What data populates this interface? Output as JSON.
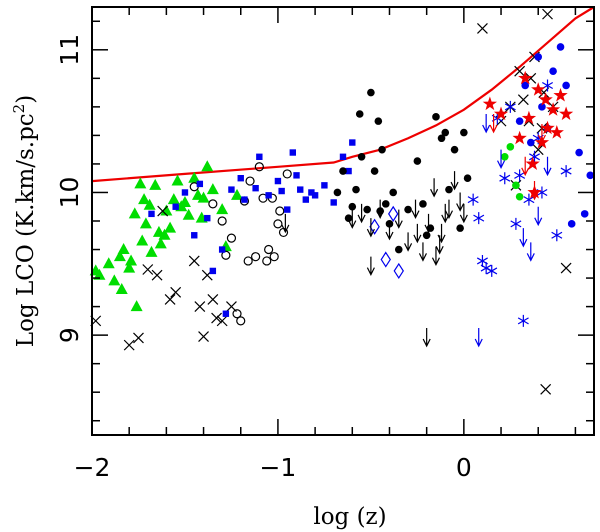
{
  "chart_data": {
    "type": "scatter",
    "title": "",
    "xlabel": "log (z)",
    "ylabel": "Log LCO (K.km/s.pc",
    "ylabel_sup": "2",
    "ylabel_end": ")",
    "xlim": [
      -2.0,
      0.7
    ],
    "ylim": [
      8.3,
      11.3
    ],
    "xticks": [
      -2,
      -1,
      0
    ],
    "xtick_labels": [
      "−2",
      "−1",
      "0"
    ],
    "yticks": [
      9,
      10,
      11
    ],
    "ytick_labels": [
      "9",
      "10",
      "11"
    ],
    "colors": {
      "green": "#00dd00",
      "blue": "#0000ee",
      "red": "#ee0000",
      "black": "#000000"
    },
    "curve": {
      "name": "model-curve",
      "color": "#ee0000",
      "x": [
        -2.0,
        -1.5,
        -1.0,
        -0.7,
        -0.6,
        -0.45,
        -0.3,
        -0.15,
        0.0,
        0.15,
        0.3,
        0.45,
        0.6,
        0.7
      ],
      "y": [
        10.08,
        10.13,
        10.18,
        10.21,
        10.25,
        10.3,
        10.38,
        10.47,
        10.58,
        10.72,
        10.88,
        11.05,
        11.22,
        11.35
      ]
    },
    "series": [
      {
        "name": "green-triangles",
        "marker": "triangle",
        "color": "#00dd00",
        "x": [
          -1.98,
          -1.96,
          -1.91,
          -1.88,
          -1.85,
          -1.84,
          -1.83,
          -1.8,
          -1.79,
          -1.77,
          -1.76,
          -1.74,
          -1.73,
          -1.72,
          -1.71,
          -1.69,
          -1.68,
          -1.66,
          -1.64,
          -1.63,
          -1.61,
          -1.6,
          -1.58,
          -1.56,
          -1.54,
          -1.52,
          -1.5,
          -1.48,
          -1.45,
          -1.43,
          -1.41,
          -1.4,
          -1.38,
          -1.35,
          -1.3,
          -1.28,
          -1.22
        ],
        "y": [
          9.45,
          9.42,
          9.5,
          9.38,
          9.55,
          9.32,
          9.6,
          9.47,
          9.52,
          9.85,
          9.2,
          10.06,
          9.66,
          9.95,
          9.78,
          9.91,
          9.58,
          10.05,
          9.72,
          9.64,
          9.7,
          9.87,
          9.75,
          9.95,
          10.08,
          9.9,
          9.93,
          9.84,
          10.1,
          9.98,
          9.82,
          9.96,
          10.18,
          10.02,
          9.88,
          9.62,
          9.98
        ]
      },
      {
        "name": "black-crosses",
        "marker": "cross",
        "color": "#000000",
        "x": [
          -1.98,
          -1.8,
          -1.75,
          -1.7,
          -1.65,
          -1.62,
          -1.58,
          -1.55,
          -1.45,
          -1.42,
          -1.4,
          -1.38,
          -1.35,
          -1.33,
          -1.3,
          -1.25,
          0.1,
          0.2,
          0.25,
          0.28,
          0.3,
          0.32,
          0.35,
          0.36,
          0.38,
          0.4,
          0.42,
          0.43,
          0.44,
          0.45,
          0.48,
          0.55
        ],
        "y": [
          9.1,
          8.93,
          8.98,
          9.46,
          9.42,
          9.87,
          9.25,
          9.3,
          9.52,
          9.2,
          8.99,
          9.42,
          9.25,
          9.12,
          9.1,
          9.2,
          11.15,
          10.5,
          10.6,
          10.05,
          10.85,
          10.65,
          10.5,
          10.8,
          10.95,
          10.3,
          10.45,
          10.7,
          8.62,
          11.25,
          10.6,
          9.47
        ]
      },
      {
        "name": "black-open-circles",
        "marker": "circle-open",
        "color": "#000000",
        "x": [
          -1.45,
          -1.35,
          -1.3,
          -1.28,
          -1.25,
          -1.22,
          -1.2,
          -1.18,
          -1.16,
          -1.15,
          -1.12,
          -1.1,
          -1.08,
          -1.06,
          -1.05,
          -1.03,
          -1.02,
          -1.0,
          -0.99,
          -0.97,
          -0.95
        ],
        "y": [
          10.04,
          9.92,
          9.8,
          9.56,
          9.68,
          9.15,
          9.1,
          9.94,
          9.52,
          10.08,
          9.55,
          10.18,
          9.96,
          9.52,
          9.6,
          9.96,
          9.55,
          9.78,
          9.87,
          9.72,
          10.13
        ]
      },
      {
        "name": "blue-squares",
        "marker": "square",
        "color": "#0000ee",
        "x": [
          -1.68,
          -1.55,
          -1.5,
          -1.45,
          -1.42,
          -1.38,
          -1.35,
          -1.3,
          -1.28,
          -1.25,
          -1.2,
          -1.18,
          -1.12,
          -1.1,
          -1.05,
          -1.0,
          -0.98,
          -0.95,
          -0.92,
          -0.9,
          -0.88,
          -0.85,
          -0.82,
          -0.8,
          -0.75,
          -0.7,
          -0.65,
          -0.62,
          -0.6
        ],
        "y": [
          9.85,
          9.9,
          10.0,
          9.7,
          10.06,
          9.82,
          9.45,
          9.6,
          9.15,
          10.02,
          10.1,
          9.95,
          10.03,
          10.25,
          9.98,
          10.08,
          10.01,
          9.88,
          10.28,
          10.12,
          10.02,
          9.95,
          10.0,
          9.98,
          10.05,
          9.93,
          10.25,
          10.15,
          10.35
        ]
      },
      {
        "name": "black-filled-circles",
        "marker": "circle-filled",
        "color": "#000000",
        "x": [
          -0.68,
          -0.65,
          -0.62,
          -0.6,
          -0.58,
          -0.56,
          -0.55,
          -0.52,
          -0.5,
          -0.48,
          -0.46,
          -0.45,
          -0.44,
          -0.42,
          -0.4,
          -0.38,
          -0.35,
          -0.3,
          -0.25,
          -0.22,
          -0.2,
          -0.18,
          -0.15,
          -0.12,
          -0.1,
          -0.08,
          -0.05,
          -0.02,
          0.0,
          0.02
        ],
        "y": [
          10.0,
          10.15,
          9.82,
          9.9,
          10.02,
          10.55,
          10.25,
          9.88,
          10.7,
          10.15,
          10.5,
          9.87,
          10.3,
          9.92,
          9.78,
          10.0,
          9.6,
          9.88,
          10.22,
          9.92,
          9.7,
          9.75,
          10.53,
          10.38,
          10.42,
          10.02,
          10.3,
          9.75,
          10.42,
          10.1
        ]
      },
      {
        "name": "blue-diamonds",
        "marker": "diamond",
        "color": "#0000ee",
        "x": [
          -0.48,
          -0.42,
          -0.38,
          -0.35
        ],
        "y": [
          9.76,
          9.53,
          9.85,
          9.45
        ]
      },
      {
        "name": "blue-asterisks",
        "marker": "asterisk",
        "color": "#0000ee",
        "x": [
          0.05,
          0.08,
          0.1,
          0.12,
          0.15,
          0.18,
          0.22,
          0.25,
          0.28,
          0.3,
          0.32,
          0.35,
          0.38,
          0.4,
          0.42,
          0.45,
          0.5,
          0.55
        ],
        "y": [
          9.95,
          9.82,
          9.52,
          9.47,
          9.45,
          10.52,
          10.1,
          10.6,
          9.78,
          10.12,
          9.1,
          9.95,
          10.25,
          10.38,
          10.0,
          10.75,
          9.7,
          10.15
        ]
      },
      {
        "name": "blue-circles",
        "marker": "circle-filled",
        "color": "#0000ee",
        "x": [
          0.3,
          0.33,
          0.36,
          0.4,
          0.42,
          0.45,
          0.48,
          0.52,
          0.55,
          0.58,
          0.62,
          0.65,
          0.68
        ],
        "y": [
          10.5,
          10.75,
          10.35,
          10.95,
          10.6,
          10.45,
          10.85,
          11.02,
          10.75,
          9.78,
          10.28,
          9.85,
          10.12
        ]
      },
      {
        "name": "green-circles",
        "marker": "circle-filled",
        "color": "#00dd00",
        "x": [
          0.22,
          0.25,
          0.28,
          0.3
        ],
        "y": [
          10.25,
          10.32,
          10.05,
          9.97
        ]
      },
      {
        "name": "red-stars",
        "marker": "star",
        "color": "#ee0000",
        "x": [
          0.14,
          0.2,
          0.3,
          0.33,
          0.35,
          0.37,
          0.38,
          0.4,
          0.42,
          0.44,
          0.45,
          0.48,
          0.5,
          0.52,
          0.55
        ],
        "y": [
          10.62,
          10.55,
          10.38,
          10.8,
          10.52,
          10.2,
          10.0,
          10.72,
          10.35,
          10.65,
          10.45,
          10.58,
          10.42,
          10.68,
          10.55
        ]
      }
    ],
    "upper_limits": [
      {
        "name": "black-upper-limits",
        "color": "#000000",
        "x": [
          -0.96,
          -0.6,
          -0.55,
          -0.5,
          -0.45,
          -0.4,
          -0.35,
          -0.3,
          -0.26,
          -0.22,
          -0.19,
          -0.16,
          -0.13,
          -0.1,
          -0.08,
          -0.05,
          -0.02,
          0.0,
          -0.12,
          -0.2,
          -0.25,
          -0.5,
          -0.15
        ],
        "y": [
          9.85,
          9.88,
          9.92,
          9.82,
          9.95,
          9.8,
          9.88,
          9.72,
          9.95,
          9.65,
          9.85,
          10.1,
          9.7,
          9.92,
          9.95,
          10.15,
          10.0,
          9.92,
          9.78,
          9.05,
          9.78,
          9.55,
          9.62
        ]
      },
      {
        "name": "blue-upper-limits",
        "color": "#0000ee",
        "x": [
          0.08,
          0.12,
          0.2,
          0.32,
          0.36,
          0.4,
          0.45
        ],
        "y": [
          9.05,
          10.55,
          10.3,
          9.75,
          9.65,
          9.9,
          10.25
        ]
      },
      {
        "name": "red-upper-limits",
        "color": "#ee0000",
        "x": [
          0.16,
          0.33,
          0.38,
          0.42
        ],
        "y": [
          10.55,
          10.25,
          10.08,
          10.48
        ]
      }
    ]
  }
}
